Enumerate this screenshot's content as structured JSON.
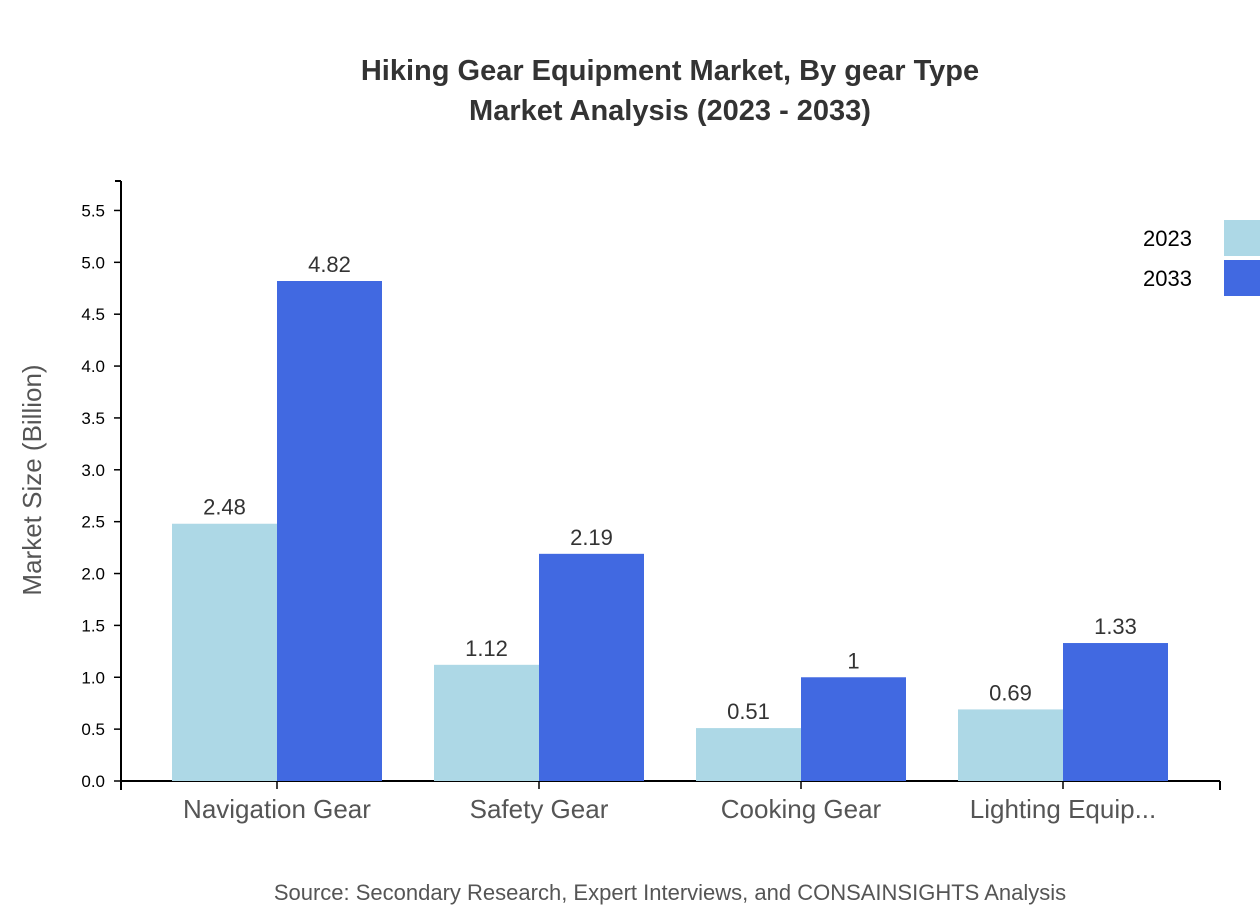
{
  "chart_data": {
    "type": "bar",
    "title": "Hiking Gear Equipment Market, By gear Type",
    "subtitle": "Market Analysis (2023 - 2033)",
    "ylabel": "Market Size (Billion)",
    "xlabel": "",
    "categories": [
      "Navigation Gear",
      "Safety Gear",
      "Cooking Gear",
      "Lighting Equip..."
    ],
    "series": [
      {
        "name": "2023",
        "color": "#add8e6",
        "values": [
          2.48,
          1.12,
          0.51,
          0.69
        ],
        "labels": [
          "2.48",
          "1.12",
          "0.51",
          "0.69"
        ]
      },
      {
        "name": "2033",
        "color": "#4169e1",
        "values": [
          4.82,
          2.19,
          1.0,
          1.33
        ],
        "labels": [
          "4.82",
          "2.19",
          "1",
          "1.33"
        ]
      }
    ],
    "ylim": [
      0,
      5.784
    ],
    "yticks": [
      "0.0",
      "0.5",
      "1.0",
      "1.5",
      "2.0",
      "2.5",
      "3.0",
      "3.5",
      "4.0",
      "4.5",
      "5.0",
      "5.5"
    ],
    "grid": false,
    "legend": "top-right",
    "source": "Source: Secondary Research, Expert Interviews, and CONSAINSIGHTS Analysis"
  }
}
